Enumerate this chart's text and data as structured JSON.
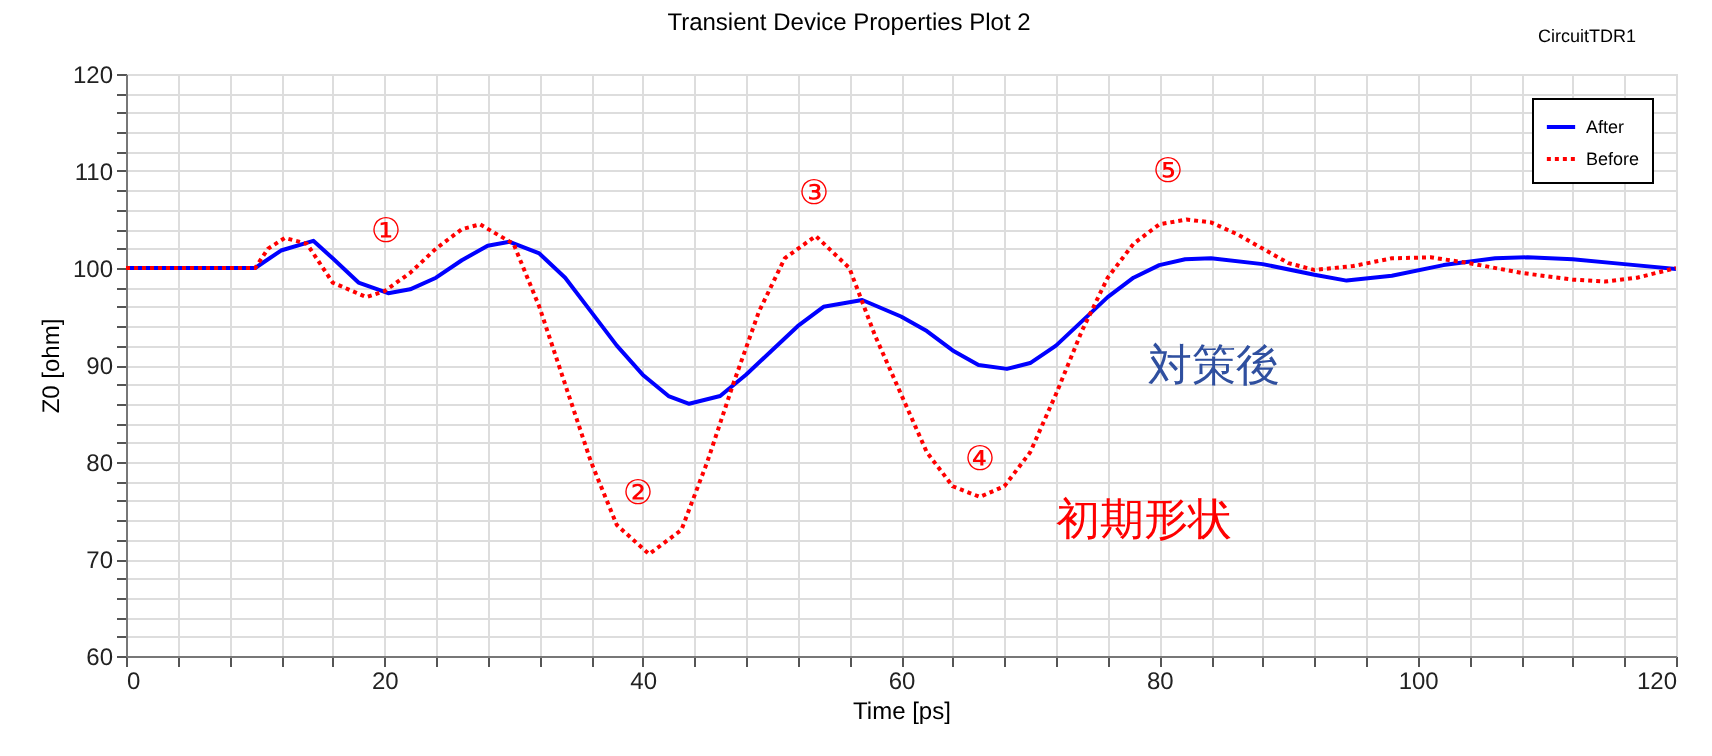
{
  "chart_data": {
    "type": "line",
    "title": "Transient Device Properties Plot 2",
    "xlabel": "Time [ps]",
    "ylabel": "Z0 [ohm]",
    "xlim": [
      0,
      120
    ],
    "ylim": [
      60,
      120
    ],
    "xticks": [
      0,
      {
        "value": 4,
        "label": null
      },
      {
        "value": 8,
        "label": null
      },
      {
        "value": 12,
        "label": null
      },
      {
        "value": 16,
        "label": null
      },
      20,
      {
        "value": 24,
        "label": null
      },
      {
        "value": 28,
        "label": null
      },
      {
        "value": 32,
        "label": null
      },
      {
        "value": 36,
        "label": null
      },
      40,
      {
        "value": 44,
        "label": null
      },
      {
        "value": 48,
        "label": null
      },
      {
        "value": 52,
        "label": null
      },
      {
        "value": 56,
        "label": null
      },
      60,
      {
        "value": 64,
        "label": null
      },
      {
        "value": 68,
        "label": null
      },
      {
        "value": 72,
        "label": null
      },
      {
        "value": 76,
        "label": null
      },
      80,
      {
        "value": 84,
        "label": null
      },
      {
        "value": 88,
        "label": null
      },
      {
        "value": 92,
        "label": null
      },
      {
        "value": 96,
        "label": null
      },
      100,
      {
        "value": 104,
        "label": null
      },
      {
        "value": 108,
        "label": null
      },
      {
        "value": 112,
        "label": null
      },
      {
        "value": 116,
        "label": null
      },
      120
    ],
    "yticks": [
      60,
      {
        "value": 62,
        "label": null
      },
      {
        "value": 64,
        "label": null
      },
      {
        "value": 66,
        "label": null
      },
      {
        "value": 68,
        "label": null
      },
      70,
      {
        "value": 72,
        "label": null
      },
      {
        "value": 74,
        "label": null
      },
      {
        "value": 76,
        "label": null
      },
      {
        "value": 78,
        "label": null
      },
      80,
      {
        "value": 82,
        "label": null
      },
      {
        "value": 84,
        "label": null
      },
      {
        "value": 86,
        "label": null
      },
      {
        "value": 88,
        "label": null
      },
      90,
      {
        "value": 92,
        "label": null
      },
      {
        "value": 94,
        "label": null
      },
      {
        "value": 96,
        "label": null
      },
      {
        "value": 98,
        "label": null
      },
      100,
      {
        "value": 102,
        "label": null
      },
      {
        "value": 104,
        "label": null
      },
      {
        "value": 106,
        "label": null
      },
      {
        "value": 108,
        "label": null
      },
      110,
      {
        "value": 112,
        "label": null
      },
      {
        "value": 114,
        "label": null
      },
      {
        "value": 116,
        "label": null
      },
      {
        "value": 118,
        "label": null
      },
      120
    ],
    "grid": true,
    "legend": "top right",
    "marker": "none",
    "series": [
      {
        "name": "After",
        "color": "#0000ff",
        "line_style": "solid",
        "x": [
          0,
          10,
          12,
          14.5,
          16,
          18,
          20.3,
          22,
          24,
          26,
          28,
          29.7,
          32,
          34,
          36,
          38,
          40,
          42,
          43.6,
          46,
          48,
          50,
          52,
          54,
          57,
          60,
          62,
          64,
          66,
          68.2,
          70,
          72,
          74,
          76,
          78,
          80,
          82,
          84,
          88,
          92,
          94.5,
          98,
          102,
          106,
          108.5,
          112,
          116,
          120
        ],
        "values": [
          100,
          100,
          101.8,
          102.8,
          101,
          98.5,
          97.4,
          97.8,
          99,
          100.8,
          102.3,
          102.7,
          101.5,
          99,
          95.5,
          92,
          89,
          86.8,
          86,
          86.8,
          89,
          91.5,
          94,
          96,
          96.7,
          95,
          93.5,
          91.5,
          90,
          89.6,
          90.2,
          92,
          94.5,
          97,
          99,
          100.3,
          100.9,
          101,
          100.4,
          99.3,
          98.7,
          99.2,
          100.3,
          101,
          101.1,
          100.9,
          100.4,
          99.9
        ]
      },
      {
        "name": "Before",
        "color": "#ff0000",
        "line_style": "dotted",
        "x": [
          0,
          10,
          11,
          12.3,
          14,
          16,
          18.6,
          20,
          22,
          24,
          26,
          27.4,
          30,
          32,
          34,
          36,
          38,
          40.5,
          43,
          45,
          47,
          49,
          51,
          53.4,
          56,
          58,
          60,
          62,
          64,
          66.1,
          68,
          70,
          72,
          74,
          76,
          78,
          80,
          82.1,
          84,
          86,
          88,
          90,
          92,
          95,
          98,
          101,
          104,
          108,
          112,
          114.5,
          117,
          120
        ],
        "values": [
          100,
          100,
          102,
          103.1,
          102.5,
          98.5,
          97,
          97.6,
          99.5,
          102,
          104,
          104.5,
          102.5,
          96,
          88,
          80,
          73.5,
          70.5,
          73,
          80,
          88,
          95.5,
          101,
          103.3,
          100,
          93,
          87,
          81,
          77.5,
          76.4,
          77.5,
          81,
          87,
          93.5,
          99,
          102.5,
          104.5,
          105,
          104.7,
          103.5,
          102,
          100.5,
          99.8,
          100.2,
          101,
          101.1,
          100.5,
          99.5,
          98.8,
          98.6,
          99,
          100
        ]
      }
    ],
    "annotations": [
      "CircuitTDR1",
      "①",
      "②",
      "③",
      "④",
      "⑤",
      "対策後",
      "初期形状"
    ]
  }
}
